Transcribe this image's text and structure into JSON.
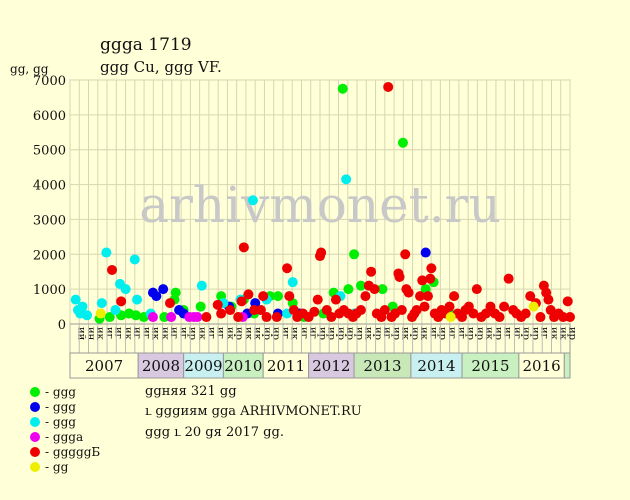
{
  "header": {
    "title": "ցցցа 1719",
    "subtitle": "ցցց Cu, ցցց VF.",
    "unit_label": "ցց, ցց"
  },
  "watermark": "arhivmonet.ru",
  "legend": {
    "items": [
      {
        "color": "#00ee00",
        "label": "- ցցց"
      },
      {
        "color": "#0000ee",
        "label": "- ցցց"
      },
      {
        "color": "#00eeee",
        "label": "- ցցց"
      },
      {
        "color": "#ee00ee",
        "label": "- ցցցa"
      },
      {
        "color": "#ee0000",
        "label": "- ցցցցցБ"
      },
      {
        "color": "#eeee00",
        "label": "- ցց"
      }
    ]
  },
  "footer": {
    "line1": "ցցняя 321 ցց",
    "line2": "ւ ցցցиям ցցa ARHIVMONET.RU",
    "line3": "ցցց ւ 20 ցя 2017 ցց."
  },
  "chart_data": {
    "type": "scatter",
    "ylim": [
      0,
      7000
    ],
    "yticks": [
      0,
      1000,
      2000,
      3000,
      4000,
      5000,
      6000,
      7000
    ],
    "grid": true,
    "x_sub_labels": [
      "ий",
      "ин",
      "ик",
      "иг",
      "иг",
      "ик",
      "иг",
      "иг",
      "ик",
      "ик",
      "иг",
      "иг",
      "ир",
      "ик",
      "иг",
      "иг",
      "ик",
      "ир",
      "ик",
      "ик",
      "ир",
      "ир",
      "иг",
      "ик",
      "иг",
      "иг",
      "ир",
      "ир",
      "ир",
      "ир",
      "ир",
      "ик",
      "ир",
      "иг",
      "ир",
      "ик",
      "ир",
      "ик",
      "иг",
      "ир",
      "иг",
      "иг",
      "ир",
      "ир",
      "ик",
      "ир",
      "иг",
      "иг",
      "ир",
      "ир",
      "иг",
      "ик",
      "ик",
      "ир"
    ],
    "years": [
      {
        "label": "2007",
        "from": 0,
        "to": 6,
        "color": "#ffffd8"
      },
      {
        "label": "2008",
        "from": 6,
        "to": 10,
        "color": "#d8c8e0"
      },
      {
        "label": "2009",
        "from": 10,
        "to": 13.5,
        "color": "#c8f0f0"
      },
      {
        "label": "2010",
        "from": 13.5,
        "to": 17,
        "color": "#c8f0c0"
      },
      {
        "label": "2011",
        "from": 17,
        "to": 21,
        "color": "#ffffd8"
      },
      {
        "label": "2012",
        "from": 21,
        "to": 25,
        "color": "#d8c8e0"
      },
      {
        "label": "2013",
        "from": 25,
        "to": 30,
        "color": "#c8e8b8"
      },
      {
        "label": "2014",
        "from": 30,
        "to": 34.5,
        "color": "#c8f0f0"
      },
      {
        "label": "2015",
        "from": 34.5,
        "to": 39.5,
        "color": "#c8f0c0"
      },
      {
        "label": "2016",
        "from": 39.5,
        "to": 43.5,
        "color": "#ffffd8"
      }
    ],
    "x_range": [
      0,
      44
    ],
    "series": [
      {
        "color": "#00ee00",
        "points": [
          [
            2.6,
            150
          ],
          [
            3.5,
            200
          ],
          [
            4.5,
            250
          ],
          [
            5.2,
            300
          ],
          [
            5.8,
            250
          ],
          [
            6.5,
            200
          ],
          [
            8.3,
            200
          ],
          [
            9.2,
            700
          ],
          [
            9.3,
            900
          ],
          [
            10.0,
            400
          ],
          [
            11.5,
            500
          ],
          [
            13.3,
            800
          ],
          [
            14.2,
            500
          ],
          [
            15.3,
            700
          ],
          [
            16.2,
            300
          ],
          [
            17.6,
            800
          ],
          [
            18.3,
            800
          ],
          [
            19.6,
            600
          ],
          [
            20.6,
            200
          ],
          [
            22.3,
            300
          ],
          [
            23.2,
            900
          ],
          [
            24.5,
            1000
          ],
          [
            24.0,
            6750
          ],
          [
            25.0,
            2000
          ],
          [
            25.6,
            1100
          ],
          [
            27.5,
            1000
          ],
          [
            28.4,
            500
          ],
          [
            29.3,
            5200
          ],
          [
            31.3,
            1000
          ],
          [
            32.0,
            1200
          ],
          [
            33.4,
            300
          ]
        ]
      },
      {
        "color": "#0000ee",
        "points": [
          [
            7.3,
            900
          ],
          [
            7.6,
            800
          ],
          [
            8.2,
            1000
          ],
          [
            9.6,
            400
          ],
          [
            10.0,
            300
          ],
          [
            14.0,
            500
          ],
          [
            15.6,
            300
          ],
          [
            16.3,
            600
          ],
          [
            18.3,
            300
          ],
          [
            20.2,
            300
          ],
          [
            31.3,
            2050
          ]
        ]
      },
      {
        "color": "#00eeee",
        "points": [
          [
            0.5,
            700
          ],
          [
            0.7,
            400
          ],
          [
            0.9,
            300
          ],
          [
            1.1,
            500
          ],
          [
            1.5,
            250
          ],
          [
            2.8,
            600
          ],
          [
            3.2,
            2050
          ],
          [
            4.0,
            400
          ],
          [
            4.4,
            1150
          ],
          [
            4.9,
            1000
          ],
          [
            5.7,
            1850
          ],
          [
            5.9,
            700
          ],
          [
            7.1,
            300
          ],
          [
            11.6,
            1100
          ],
          [
            13.5,
            600
          ],
          [
            15.0,
            700
          ],
          [
            16.1,
            3550
          ],
          [
            17.3,
            700
          ],
          [
            19.1,
            300
          ],
          [
            19.6,
            1200
          ],
          [
            23.8,
            800
          ],
          [
            24.3,
            4150
          ],
          [
            25.0,
            300
          ]
        ]
      },
      {
        "color": "#ee00ee",
        "points": [
          [
            7.3,
            200
          ],
          [
            8.9,
            200
          ],
          [
            10.5,
            200
          ],
          [
            10.9,
            200
          ],
          [
            11.2,
            200
          ],
          [
            15.2,
            200
          ]
        ]
      },
      {
        "color": "#ee0000",
        "points": [
          [
            3.7,
            1550
          ],
          [
            4.5,
            650
          ],
          [
            8.8,
            600
          ],
          [
            12.0,
            200
          ],
          [
            13.0,
            550
          ],
          [
            13.3,
            300
          ],
          [
            14.1,
            400
          ],
          [
            14.8,
            200
          ],
          [
            15.1,
            650
          ],
          [
            15.3,
            2200
          ],
          [
            15.7,
            850
          ],
          [
            16.2,
            400
          ],
          [
            16.8,
            400
          ],
          [
            17.0,
            800
          ],
          [
            17.3,
            200
          ],
          [
            18.2,
            200
          ],
          [
            19.1,
            1600
          ],
          [
            19.3,
            800
          ],
          [
            19.7,
            400
          ],
          [
            20.0,
            200
          ],
          [
            20.5,
            300
          ],
          [
            21.0,
            200
          ],
          [
            21.5,
            350
          ],
          [
            21.8,
            700
          ],
          [
            22.0,
            1950
          ],
          [
            22.1,
            2050
          ],
          [
            22.6,
            400
          ],
          [
            23.0,
            200
          ],
          [
            23.4,
            700
          ],
          [
            23.7,
            300
          ],
          [
            24.1,
            400
          ],
          [
            24.5,
            300
          ],
          [
            24.9,
            200
          ],
          [
            25.2,
            300
          ],
          [
            25.6,
            400
          ],
          [
            26.0,
            800
          ],
          [
            26.3,
            1100
          ],
          [
            26.5,
            1500
          ],
          [
            26.8,
            1000
          ],
          [
            27.0,
            300
          ],
          [
            27.4,
            200
          ],
          [
            27.7,
            400
          ],
          [
            28.0,
            6800
          ],
          [
            28.3,
            200
          ],
          [
            28.6,
            300
          ],
          [
            28.9,
            1450
          ],
          [
            29.0,
            1350
          ],
          [
            29.2,
            400
          ],
          [
            29.5,
            2000
          ],
          [
            29.6,
            1000
          ],
          [
            29.8,
            900
          ],
          [
            30.1,
            200
          ],
          [
            30.3,
            300
          ],
          [
            30.5,
            400
          ],
          [
            30.8,
            800
          ],
          [
            31.0,
            1250
          ],
          [
            31.2,
            500
          ],
          [
            31.5,
            800
          ],
          [
            31.7,
            1300
          ],
          [
            31.8,
            1600
          ],
          [
            32.1,
            300
          ],
          [
            32.4,
            200
          ],
          [
            32.7,
            400
          ],
          [
            33.0,
            300
          ],
          [
            33.4,
            500
          ],
          [
            33.8,
            800
          ],
          [
            34.1,
            300
          ],
          [
            34.5,
            200
          ],
          [
            34.8,
            400
          ],
          [
            35.1,
            500
          ],
          [
            35.5,
            300
          ],
          [
            35.8,
            1000
          ],
          [
            36.2,
            200
          ],
          [
            36.6,
            300
          ],
          [
            37.0,
            500
          ],
          [
            37.4,
            300
          ],
          [
            37.8,
            200
          ],
          [
            38.2,
            500
          ],
          [
            38.6,
            1300
          ],
          [
            39.0,
            400
          ],
          [
            39.3,
            300
          ],
          [
            39.7,
            200
          ],
          [
            40.1,
            300
          ],
          [
            40.5,
            800
          ],
          [
            41.0,
            600
          ],
          [
            41.4,
            200
          ],
          [
            41.7,
            1100
          ],
          [
            41.9,
            900
          ],
          [
            42.1,
            700
          ],
          [
            42.3,
            400
          ],
          [
            42.6,
            200
          ],
          [
            43.0,
            300
          ],
          [
            43.4,
            200
          ],
          [
            43.8,
            650
          ],
          [
            44.0,
            200
          ]
        ]
      },
      {
        "color": "#eeee00",
        "points": [
          [
            2.7,
            300
          ],
          [
            33.5,
            200
          ],
          [
            40.8,
            500
          ]
        ]
      }
    ]
  }
}
